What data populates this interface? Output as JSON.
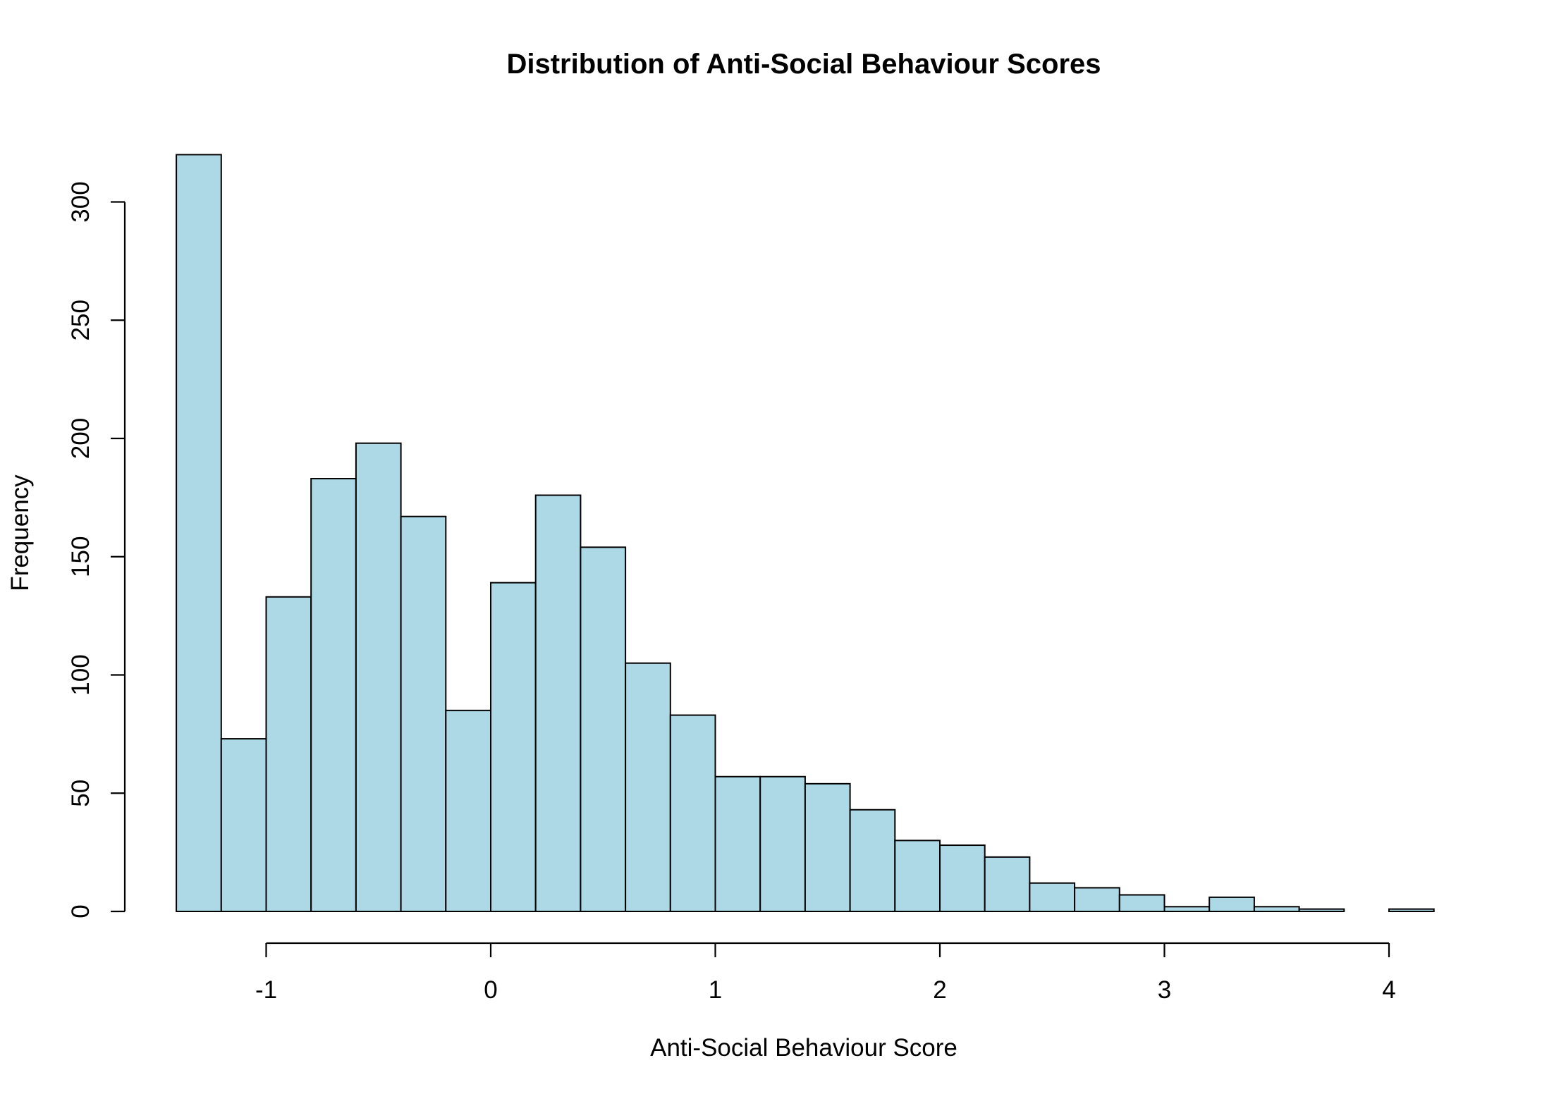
{
  "chart_data": {
    "type": "bar",
    "title": "Distribution of Anti-Social Behaviour Scores",
    "xlabel": "Anti-Social Behaviour Score",
    "ylabel": "Frequency",
    "bar_color": "#add8e6",
    "bar_edge_color": "#000000",
    "xlim": [
      -1.4,
      4.2
    ],
    "ylim": [
      0,
      320
    ],
    "x_ticks": [
      -1,
      0,
      1,
      2,
      3,
      4
    ],
    "y_ticks": [
      0,
      50,
      100,
      150,
      200,
      250,
      300
    ],
    "bins": [
      {
        "start": -1.4,
        "end": -1.2,
        "count": 320
      },
      {
        "start": -1.2,
        "end": -1.0,
        "count": 73
      },
      {
        "start": -1.0,
        "end": -0.8,
        "count": 133
      },
      {
        "start": -0.8,
        "end": -0.6,
        "count": 183
      },
      {
        "start": -0.6,
        "end": -0.4,
        "count": 198
      },
      {
        "start": -0.4,
        "end": -0.2,
        "count": 167
      },
      {
        "start": -0.2,
        "end": 0.0,
        "count": 85
      },
      {
        "start": 0.0,
        "end": 0.2,
        "count": 139
      },
      {
        "start": 0.2,
        "end": 0.4,
        "count": 176
      },
      {
        "start": 0.4,
        "end": 0.6,
        "count": 154
      },
      {
        "start": 0.6,
        "end": 0.8,
        "count": 105
      },
      {
        "start": 0.8,
        "end": 1.0,
        "count": 83
      },
      {
        "start": 1.0,
        "end": 1.2,
        "count": 57
      },
      {
        "start": 1.2,
        "end": 1.4,
        "count": 57
      },
      {
        "start": 1.4,
        "end": 1.6,
        "count": 54
      },
      {
        "start": 1.6,
        "end": 1.8,
        "count": 43
      },
      {
        "start": 1.8,
        "end": 2.0,
        "count": 30
      },
      {
        "start": 2.0,
        "end": 2.2,
        "count": 28
      },
      {
        "start": 2.2,
        "end": 2.4,
        "count": 23
      },
      {
        "start": 2.4,
        "end": 2.6,
        "count": 12
      },
      {
        "start": 2.6,
        "end": 2.8,
        "count": 10
      },
      {
        "start": 2.8,
        "end": 3.0,
        "count": 7
      },
      {
        "start": 3.0,
        "end": 3.2,
        "count": 2
      },
      {
        "start": 3.2,
        "end": 3.4,
        "count": 6
      },
      {
        "start": 3.4,
        "end": 3.6,
        "count": 2
      },
      {
        "start": 3.6,
        "end": 3.8,
        "count": 1
      },
      {
        "start": 3.8,
        "end": 4.0,
        "count": 0
      },
      {
        "start": 4.0,
        "end": 4.2,
        "count": 1
      }
    ]
  }
}
